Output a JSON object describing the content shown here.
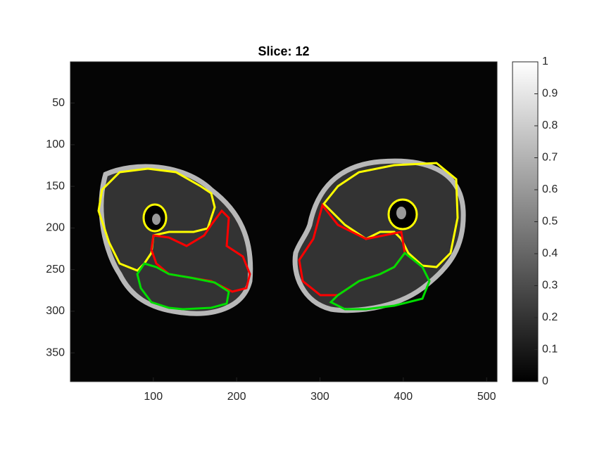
{
  "chart_data": {
    "type": "image",
    "title": "Slice: 12",
    "xlim": [
      0.5,
      512.5
    ],
    "xticks": [
      100,
      200,
      300,
      400,
      500
    ],
    "ylim": [
      0.5,
      384.5
    ],
    "yticks": [
      50,
      100,
      150,
      200,
      250,
      300,
      350
    ],
    "y_direction": "reverse",
    "colorbar": {
      "colormap": "gray",
      "clim": [
        0,
        1
      ],
      "ticks": [
        0,
        0.1,
        0.2,
        0.3,
        0.4,
        0.5,
        0.6,
        0.7,
        0.8,
        0.9,
        1
      ]
    }
  }
}
